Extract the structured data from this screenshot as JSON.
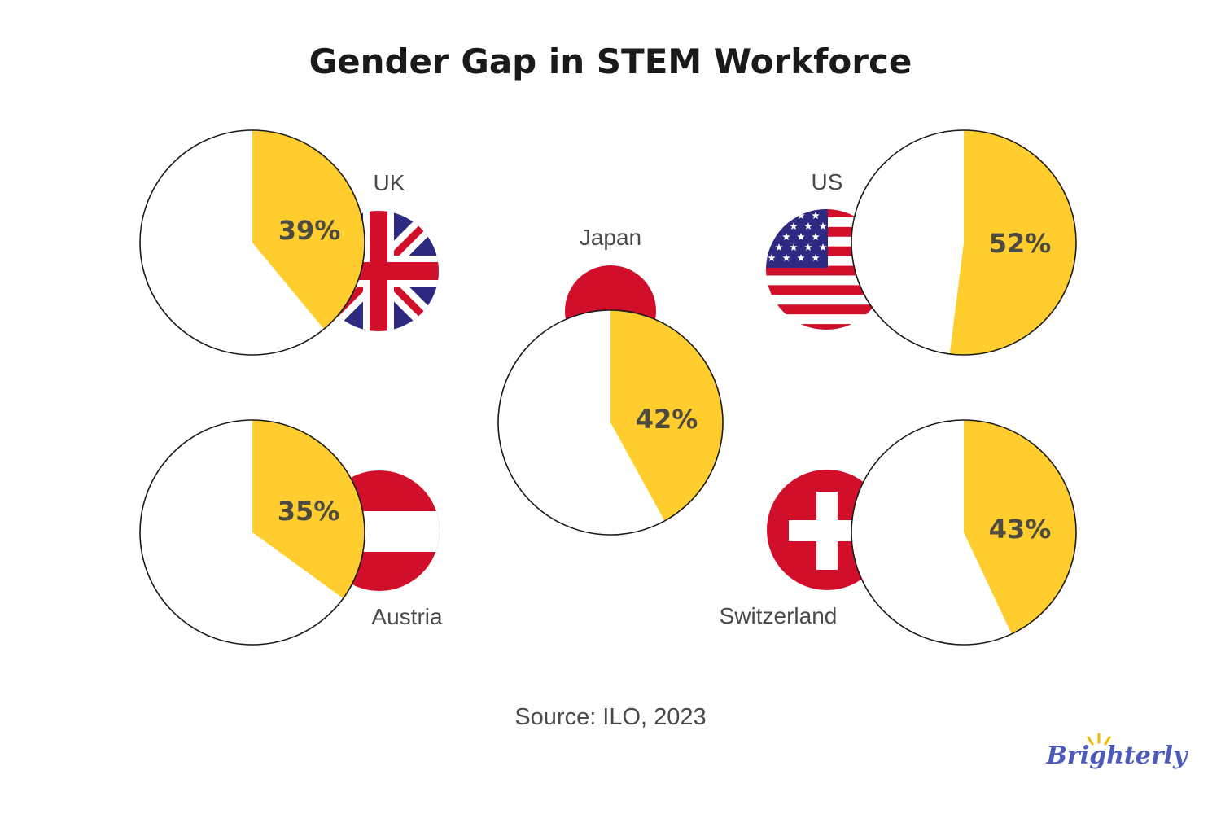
{
  "chart_data": {
    "type": "pie",
    "title": "Gender Gap in STEM Workforce",
    "source": "Source: ILO, 2023",
    "series": [
      {
        "name": "UK",
        "value": 39,
        "label": "39%",
        "flag": "uk-flag-icon"
      },
      {
        "name": "US",
        "value": 52,
        "label": "52%",
        "flag": "us-flag-icon"
      },
      {
        "name": "Japan",
        "value": 42,
        "label": "42%",
        "flag": "japan-flag-icon"
      },
      {
        "name": "Austria",
        "value": 35,
        "label": "35%",
        "flag": "austria-flag-icon"
      },
      {
        "name": "Switzerland",
        "value": 43,
        "label": "43%",
        "flag": "switzerland-flag-icon"
      }
    ]
  },
  "brand": {
    "logo": "Brighterly"
  },
  "colors": {
    "slice": "#FFCE2E",
    "background": "#FFFFFF",
    "outline": "#1A1A1A",
    "title": "#1A1A1A",
    "label": "#4A4A4A",
    "percent": "#4D4A40",
    "brand": "#4C5BB8",
    "brand_accent": "#F5B800",
    "flag_red": "#D20F2A",
    "flag_blue": "#2E2A82",
    "flag_white": "#FFFFFF"
  }
}
